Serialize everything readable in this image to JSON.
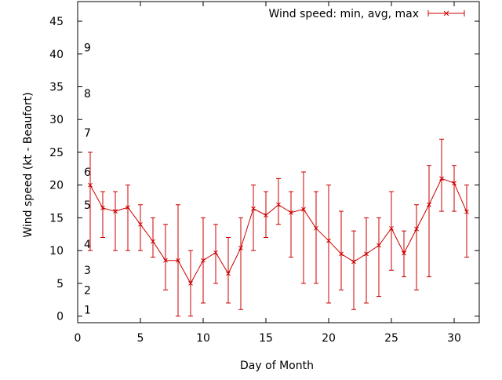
{
  "chart_data": {
    "type": "line",
    "xlabel": "Day of Month",
    "ylabel": "Wind speed (kt - Beaufort)",
    "xlim": [
      0,
      32
    ],
    "ylim": [
      -1,
      48
    ],
    "xticks": [
      0,
      5,
      10,
      15,
      20,
      25,
      30
    ],
    "yticks": [
      0,
      5,
      10,
      15,
      20,
      25,
      30,
      35,
      40,
      45
    ],
    "grid": false,
    "legend_position": "top-right",
    "beaufort_labels": [
      {
        "label": "1",
        "y": 1
      },
      {
        "label": "2",
        "y": 4
      },
      {
        "label": "3",
        "y": 7
      },
      {
        "label": "4",
        "y": 11
      },
      {
        "label": "5",
        "y": 17
      },
      {
        "label": "6",
        "y": 22
      },
      {
        "label": "7",
        "y": 28
      },
      {
        "label": "8",
        "y": 34
      },
      {
        "label": "9",
        "y": 41
      }
    ],
    "series": [
      {
        "name": "Wind speed: min, avg, max",
        "color": "#cc0000",
        "x": [
          1,
          2,
          3,
          4,
          5,
          6,
          7,
          8,
          9,
          10,
          11,
          12,
          13,
          14,
          15,
          16,
          17,
          18,
          19,
          20,
          21,
          22,
          23,
          24,
          25,
          26,
          27,
          28,
          29,
          30,
          31
        ],
        "avg": [
          20,
          16.5,
          16,
          16.6,
          14,
          11.4,
          8.5,
          8.5,
          5,
          8.5,
          9.7,
          6.5,
          10.4,
          16.4,
          15.4,
          17,
          15.8,
          16.3,
          13.4,
          11.5,
          9.5,
          8.3,
          9.5,
          10.8,
          13.4,
          9.6,
          13.3,
          17,
          21,
          20.3,
          15.9
        ],
        "min": [
          10,
          12,
          10,
          10,
          10,
          9,
          4,
          0,
          0,
          2,
          5,
          2,
          1,
          10,
          12,
          14,
          9,
          5,
          5,
          2,
          4,
          1,
          2,
          3,
          7,
          6,
          4,
          6,
          16,
          16,
          9
        ],
        "max": [
          25,
          19,
          19,
          20,
          17,
          15,
          14,
          17,
          10,
          15,
          14,
          12,
          15,
          20,
          19,
          21,
          19,
          22,
          19,
          20,
          16,
          13,
          15,
          15,
          19,
          13,
          17,
          23,
          27,
          23,
          20
        ]
      }
    ]
  }
}
